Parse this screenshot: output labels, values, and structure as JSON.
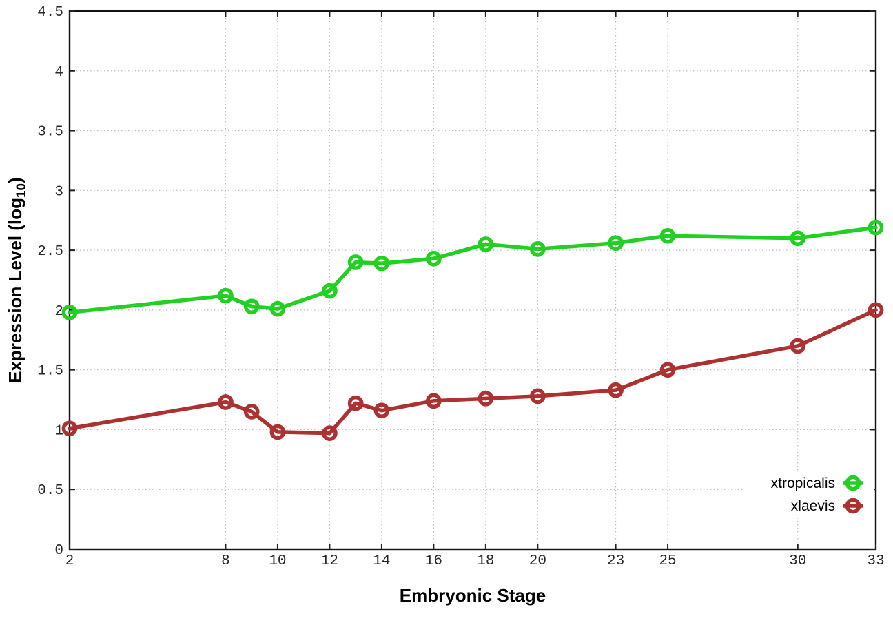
{
  "chart_data": {
    "type": "line",
    "title": "",
    "xlabel": "Embryonic Stage",
    "ylabel": "Expression Level (log10)",
    "ylabel_parts": {
      "main": "Expression Level (log",
      "sub": "10",
      "close": ")"
    },
    "xlim": [
      2,
      33
    ],
    "ylim": [
      0,
      4.5
    ],
    "grid": true,
    "x_ticks": [
      {
        "value": 2,
        "label": "2"
      },
      {
        "value": 8,
        "label": "8"
      },
      {
        "value": 10,
        "label": "10"
      },
      {
        "value": 12,
        "label": "12"
      },
      {
        "value": 14,
        "label": "14"
      },
      {
        "value": 16,
        "label": "16"
      },
      {
        "value": 18,
        "label": "18"
      },
      {
        "value": 20,
        "label": "20"
      },
      {
        "value": 23,
        "label": "23"
      },
      {
        "value": 25,
        "label": "25"
      },
      {
        "value": 30,
        "label": "30"
      },
      {
        "value": 33,
        "label": "33"
      }
    ],
    "y_ticks": [
      {
        "value": 0,
        "label": "0"
      },
      {
        "value": 0.5,
        "label": "0.5"
      },
      {
        "value": 1,
        "label": "1"
      },
      {
        "value": 1.5,
        "label": "1.5"
      },
      {
        "value": 2,
        "label": "2"
      },
      {
        "value": 2.5,
        "label": "2.5"
      },
      {
        "value": 3,
        "label": "3"
      },
      {
        "value": 3.5,
        "label": "3.5"
      },
      {
        "value": 4,
        "label": "4"
      },
      {
        "value": 4.5,
        "label": "4.5"
      }
    ],
    "x": [
      2,
      8,
      9,
      10,
      12,
      13,
      14,
      16,
      18,
      20,
      23,
      25,
      30,
      33
    ],
    "series": [
      {
        "name": "xtropicalis",
        "color": "#21d121",
        "marker": "open-circle",
        "values": [
          1.98,
          2.12,
          2.03,
          2.01,
          2.16,
          2.4,
          2.39,
          2.43,
          2.55,
          2.51,
          2.56,
          2.62,
          2.6,
          2.69
        ]
      },
      {
        "name": "xlaevis",
        "color": "#ac3131",
        "marker": "open-circle",
        "values": [
          1.01,
          1.23,
          1.15,
          0.98,
          0.97,
          1.22,
          1.16,
          1.24,
          1.26,
          1.28,
          1.33,
          1.5,
          1.7,
          2.0
        ]
      }
    ],
    "legend_position": "bottom-right",
    "colors": {
      "background": "#ffffff",
      "border": "#111111",
      "grid": "#bbbbbb",
      "tick": "#222222",
      "tick_text": "#262626"
    }
  }
}
